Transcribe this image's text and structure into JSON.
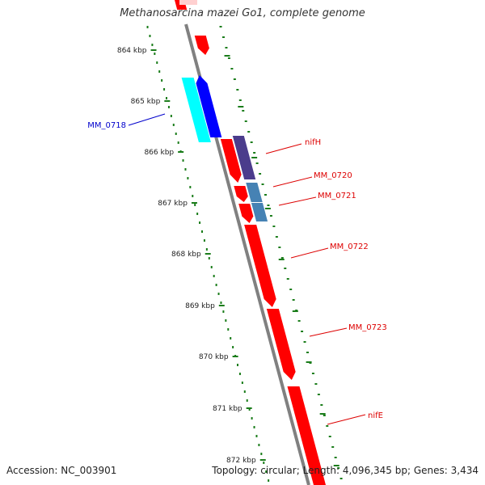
{
  "title": "Methanosarcina mazei Go1, complete genome",
  "footer": {
    "accession_label": "Accession:",
    "accession": "NC_003901",
    "topology_label": "Topology:",
    "topology": "circular",
    "length_label": "Length:",
    "length": "4,096,345 bp",
    "genes_label": "Genes:",
    "genes": "3,434"
  },
  "colors": {
    "backbone": "#808080",
    "ruler": "#1b7d1b",
    "forward_gene": "#ff0000",
    "reverse_label": "#0000cc",
    "cyan_gene": "#00ffff",
    "blue_gene": "#0000ff",
    "purple_gene": "#4b3c8c",
    "steel_gene": "#4682b4"
  },
  "ruler_ticks": [
    "864 kbp",
    "865 kbp",
    "866 kbp",
    "867 kbp",
    "868 kbp",
    "869 kbp",
    "870 kbp",
    "871 kbp",
    "872 kbp"
  ],
  "gene_labels": [
    {
      "name": "MM_0718",
      "color": "#0000cc"
    },
    {
      "name": "nifH",
      "color": "#dd0000"
    },
    {
      "name": "MM_0720",
      "color": "#dd0000"
    },
    {
      "name": "MM_0721",
      "color": "#dd0000"
    },
    {
      "name": "MM_0722",
      "color": "#dd0000"
    },
    {
      "name": "MM_0723",
      "color": "#dd0000"
    },
    {
      "name": "nifE",
      "color": "#dd0000"
    }
  ]
}
